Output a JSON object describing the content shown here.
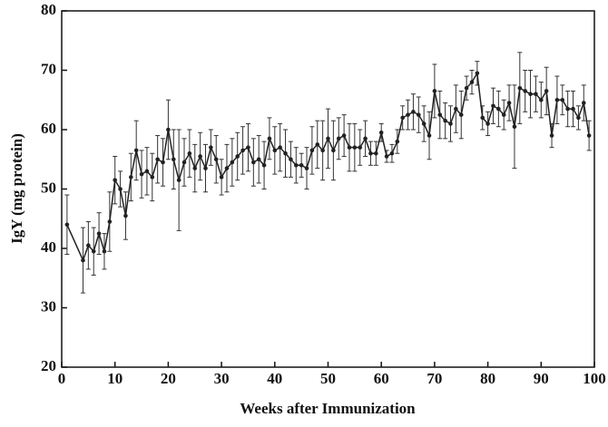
{
  "chart_data": {
    "type": "line",
    "xlabel": "Weeks after Immunization",
    "ylabel": "IgY  (mg protein)",
    "x": [
      1,
      4,
      5,
      6,
      7,
      8,
      9,
      10,
      11,
      12,
      13,
      14,
      15,
      16,
      17,
      18,
      19,
      20,
      21,
      22,
      23,
      24,
      25,
      26,
      27,
      28,
      29,
      30,
      31,
      32,
      33,
      34,
      35,
      36,
      37,
      38,
      39,
      40,
      41,
      42,
      43,
      44,
      45,
      46,
      47,
      48,
      49,
      50,
      51,
      52,
      53,
      54,
      55,
      56,
      57,
      58,
      59,
      60,
      61,
      62,
      63,
      64,
      65,
      66,
      67,
      68,
      69,
      70,
      71,
      72,
      73,
      74,
      75,
      76,
      77,
      78,
      79,
      80,
      81,
      82,
      83,
      84,
      85,
      86,
      87,
      88,
      89,
      90,
      91,
      92,
      93,
      94,
      95,
      96,
      97,
      98,
      99
    ],
    "series": [
      {
        "color": "#222222",
        "values": [
          44,
          38,
          40.5,
          39.5,
          42.5,
          39.5,
          44.5,
          51.5,
          50,
          45.5,
          52,
          56.5,
          52.5,
          53,
          52,
          55,
          54.5,
          60,
          55,
          51.5,
          54.5,
          56,
          53.5,
          55.5,
          53.5,
          57,
          55,
          52,
          53.5,
          54.5,
          55.5,
          56.5,
          57,
          54.5,
          55,
          54,
          58.5,
          56.5,
          57,
          56,
          55,
          54,
          54,
          53.5,
          56.5,
          57.5,
          56.5,
          58.5,
          56.5,
          58.5,
          59,
          57,
          57,
          57,
          58.5,
          56,
          56,
          59.5,
          55.5,
          56,
          58,
          62,
          62.5,
          63,
          62.5,
          61,
          59,
          66.5,
          62.5,
          61.5,
          61,
          63.5,
          62.5,
          67,
          68,
          69.5,
          62,
          61,
          64,
          63.5,
          62.5,
          64.5,
          60.5,
          67,
          66.5,
          66,
          66,
          65,
          66.5,
          59,
          65,
          65,
          63.5,
          63.5,
          62,
          64.5,
          59
        ],
        "errors": [
          5,
          5.5,
          4,
          4,
          3.5,
          3,
          5,
          4,
          3,
          4,
          4,
          5,
          4,
          4,
          4,
          4,
          4,
          5,
          5,
          8.5,
          4,
          4,
          4,
          4,
          4,
          3,
          4,
          3,
          4,
          4,
          4,
          4,
          4,
          4,
          4,
          4,
          3.5,
          4,
          4,
          4,
          3,
          3,
          2,
          3.5,
          4,
          4,
          5,
          5,
          5,
          3.5,
          3.5,
          4,
          4,
          3,
          3,
          2,
          2,
          1.5,
          1,
          1.5,
          2,
          2,
          2.5,
          3,
          3,
          3,
          4,
          4.5,
          4,
          3,
          3,
          4,
          4,
          2,
          2,
          2,
          2,
          2,
          3,
          3,
          2.5,
          3,
          7,
          6,
          3.5,
          4,
          3,
          3,
          4,
          2,
          4,
          2.5,
          3,
          3,
          2,
          3,
          2.5
        ]
      }
    ],
    "xlim": [
      0,
      100
    ],
    "xticks": [
      0,
      10,
      20,
      30,
      40,
      50,
      60,
      70,
      80,
      90,
      100
    ],
    "ylim": [
      20,
      80
    ],
    "yticks": [
      20,
      30,
      40,
      50,
      60,
      70,
      80
    ]
  }
}
